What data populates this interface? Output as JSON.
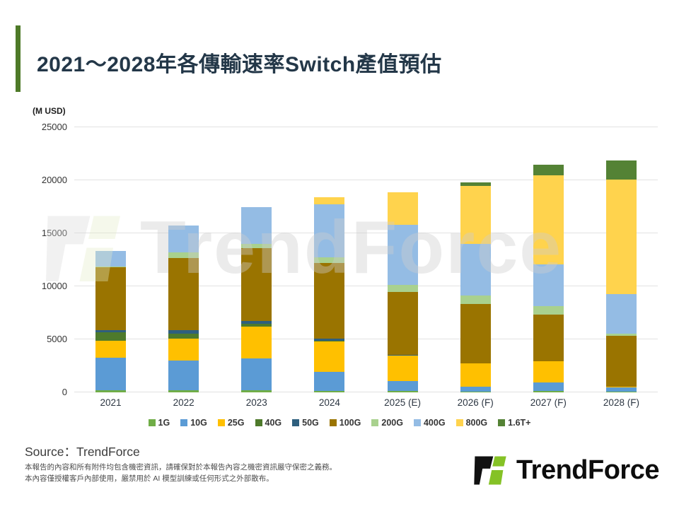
{
  "slide": {
    "title": "2021～2028年各傳輸速率Switch產值預估",
    "unit_label": "(M USD)",
    "source": "Source：TrendForce",
    "disclaimer_line1": "本報告的內容和所有附件均包含機密資訊，請確保對於本報告內容之機密資訊嚴守保密之義務。",
    "disclaimer_line2": "本內容僅授權客戶內部使用，嚴禁用於 AI 模型訓練或任何形式之外部散布。",
    "logo_text": "TrendForce",
    "watermark_text": "TrendForce"
  },
  "colors": {
    "accent_bar": "#4E7A28",
    "title_text": "#233748",
    "logo_green": "#85C226",
    "logo_black": "#111111",
    "gridline": "#E2E2E2"
  },
  "chart_data": {
    "type": "bar",
    "stacked": true,
    "title": "2021～2028年各傳輸速率Switch產值預估",
    "ylabel": "(M USD)",
    "xlabel": "",
    "ylim": [
      0,
      25000
    ],
    "yticks": [
      0,
      5000,
      10000,
      15000,
      20000,
      25000
    ],
    "grid": true,
    "legend_position": "bottom",
    "categories": [
      "2021",
      "2022",
      "2023",
      "2024",
      "2025 (E)",
      "2026 (F)",
      "2027 (F)",
      "2028 (F)"
    ],
    "series": [
      {
        "name": "1G",
        "color": "#70AD47",
        "values": [
          200,
          175,
          200,
          150,
          150,
          100,
          150,
          50
        ]
      },
      {
        "name": "10G",
        "color": "#5B9BD5",
        "values": [
          3050,
          2800,
          3000,
          1800,
          900,
          450,
          800,
          400
        ]
      },
      {
        "name": "25G",
        "color": "#FFC000",
        "values": [
          1650,
          2100,
          3000,
          2850,
          2400,
          2200,
          2000,
          100
        ]
      },
      {
        "name": "40G",
        "color": "#4E7A2B",
        "values": [
          750,
          450,
          290,
          100,
          50,
          0,
          0,
          0
        ]
      },
      {
        "name": "50G",
        "color": "#2E5F7E",
        "values": [
          250,
          330,
          270,
          180,
          60,
          0,
          0,
          0
        ]
      },
      {
        "name": "100G",
        "color": "#9A7400",
        "values": [
          5900,
          6800,
          6850,
          7130,
          5900,
          5600,
          4400,
          4800
        ]
      },
      {
        "name": "200G",
        "color": "#A9D18E",
        "values": [
          100,
          550,
          380,
          550,
          670,
          780,
          800,
          200
        ]
      },
      {
        "name": "400G",
        "color": "#94BCE4",
        "values": [
          1450,
          2500,
          3500,
          4950,
          5700,
          4900,
          3900,
          3700
        ]
      },
      {
        "name": "800G",
        "color": "#FFD34D",
        "values": [
          0,
          0,
          0,
          700,
          3050,
          5450,
          8400,
          10850
        ]
      },
      {
        "name": "1.6T+",
        "color": "#548235",
        "values": [
          0,
          0,
          0,
          0,
          0,
          350,
          1000,
          1750
        ]
      }
    ],
    "totals": [
      13350,
      15705,
      17490,
      18410,
      18880,
      19830,
      21450,
      21850
    ]
  }
}
